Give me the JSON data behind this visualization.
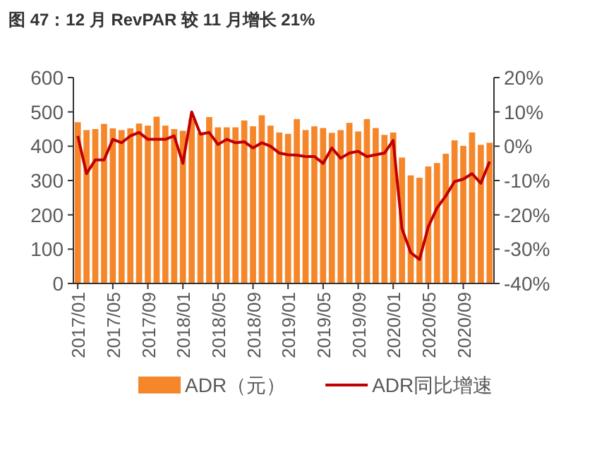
{
  "chart_data": {
    "type": "bar",
    "title": "图 47：12 月  RevPAR 较 11 月增长 21%",
    "categories": [
      "2017/01",
      null,
      null,
      null,
      "2017/05",
      null,
      null,
      null,
      "2017/09",
      null,
      null,
      null,
      "2018/01",
      null,
      null,
      null,
      "2018/05",
      null,
      null,
      null,
      "2018/09",
      null,
      null,
      null,
      "2019/01",
      null,
      null,
      null,
      "2019/05",
      null,
      null,
      null,
      "2019/09",
      null,
      null,
      null,
      "2020/01",
      null,
      null,
      null,
      "2020/05",
      null,
      null,
      null,
      "2020/09",
      null,
      null,
      null
    ],
    "series": [
      {
        "name": "ADR（元）",
        "color": "#f5862a",
        "values": [
          470,
          447,
          450,
          465,
          452,
          447,
          452,
          466,
          460,
          486,
          460,
          450,
          445,
          480,
          440,
          485,
          455,
          455,
          455,
          475,
          458,
          490,
          460,
          440,
          436,
          479,
          447,
          458,
          453,
          439,
          447,
          468,
          443,
          479,
          453,
          433,
          440,
          367,
          315,
          308,
          341,
          351,
          378,
          417,
          401,
          440,
          404,
          410
        ]
      },
      {
        "name": "ADR同比增速",
        "type": "line",
        "axis": "y2",
        "color": "#c00000",
        "values": [
          3,
          -8,
          -4,
          -4,
          2,
          1,
          3,
          4,
          2,
          2,
          2,
          3,
          -5,
          10,
          3.5,
          4,
          0.5,
          2,
          1,
          1.3,
          -0.5,
          1,
          0,
          -2,
          -2.5,
          -2.6,
          -3,
          -3,
          -5,
          -0.5,
          -3.5,
          -2,
          -1.5,
          -3,
          -2.5,
          -2,
          1.7,
          -24,
          -31,
          -33,
          -23.5,
          -18,
          -14.5,
          -10.3,
          -9.6,
          -8,
          -10.8,
          -4.5
        ]
      }
    ],
    "ylim": [
      0,
      600
    ],
    "yticks": [
      0,
      100,
      200,
      300,
      400,
      500,
      600
    ],
    "y2lim": [
      -40,
      20
    ],
    "y2ticks": [
      {
        "value": -40,
        "label": "-40%"
      },
      {
        "value": -30,
        "label": "-30%"
      },
      {
        "value": -20,
        "label": "-20%"
      },
      {
        "value": -10,
        "label": "-10%"
      },
      {
        "value": 0,
        "label": "0%"
      },
      {
        "value": 10,
        "label": "10%"
      },
      {
        "value": 20,
        "label": "20%"
      }
    ],
    "legend": "bottom"
  }
}
